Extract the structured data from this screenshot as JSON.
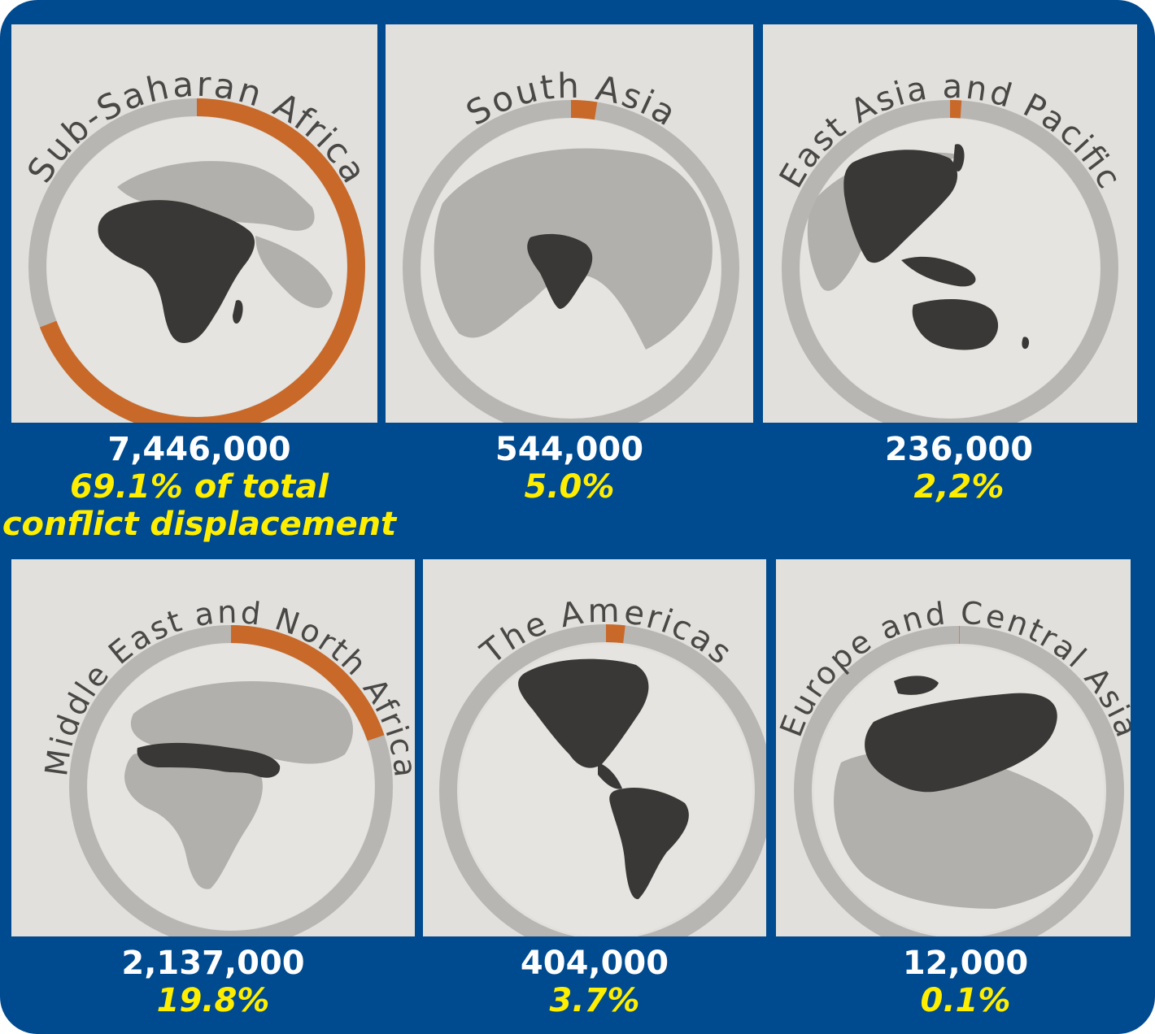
{
  "colors": {
    "background": "#004a8f",
    "panel": "#e2e0dc",
    "ring": "#b8b6b2",
    "ring_highlight": "#c8692a",
    "land": "#b2b0ac",
    "region": "#3a3836",
    "value_text": "#ffffff",
    "share_text": "#ffee00"
  },
  "panels": [
    {
      "region": "Sub-Saharan Africa",
      "value": "7,446,000",
      "share_line1": "69.1% of total",
      "share_line2": "conflict displacement",
      "map_icon": "africa-globe-icon"
    },
    {
      "region": "South Asia",
      "value": "544,000",
      "share_line1": "5.0%",
      "share_line2": "",
      "map_icon": "south-asia-globe-icon"
    },
    {
      "region": "East Asia and Pacific",
      "value": "236,000",
      "share_line1": "2,2%",
      "share_line2": "",
      "map_icon": "east-asia-globe-icon"
    },
    {
      "region": "Middle East and North Africa",
      "value": "2,137,000",
      "share_line1": "19.8%",
      "share_line2": "",
      "map_icon": "mena-globe-icon"
    },
    {
      "region": "The Americas",
      "value": "404,000",
      "share_line1": "3.7%",
      "share_line2": "",
      "map_icon": "americas-globe-icon"
    },
    {
      "region": "Europe and Central Asia",
      "value": "12,000",
      "share_line1": "0.1%",
      "share_line2": "",
      "map_icon": "europe-globe-icon"
    }
  ],
  "chart_data": {
    "type": "pie",
    "title": "",
    "categories": [
      "Sub-Saharan Africa",
      "South Asia",
      "East Asia and Pacific",
      "Middle East and North Africa",
      "The Americas",
      "Europe and Central Asia"
    ],
    "values": [
      7446000,
      544000,
      236000,
      2137000,
      404000,
      12000
    ],
    "shares_percent": [
      69.1,
      5.0,
      2.2,
      19.8,
      3.7,
      0.1
    ],
    "share_labels": [
      "69.1% of total conflict displacement",
      "5.0%",
      "2,2%",
      "19.8%",
      "3.7%",
      "0.1%"
    ]
  }
}
